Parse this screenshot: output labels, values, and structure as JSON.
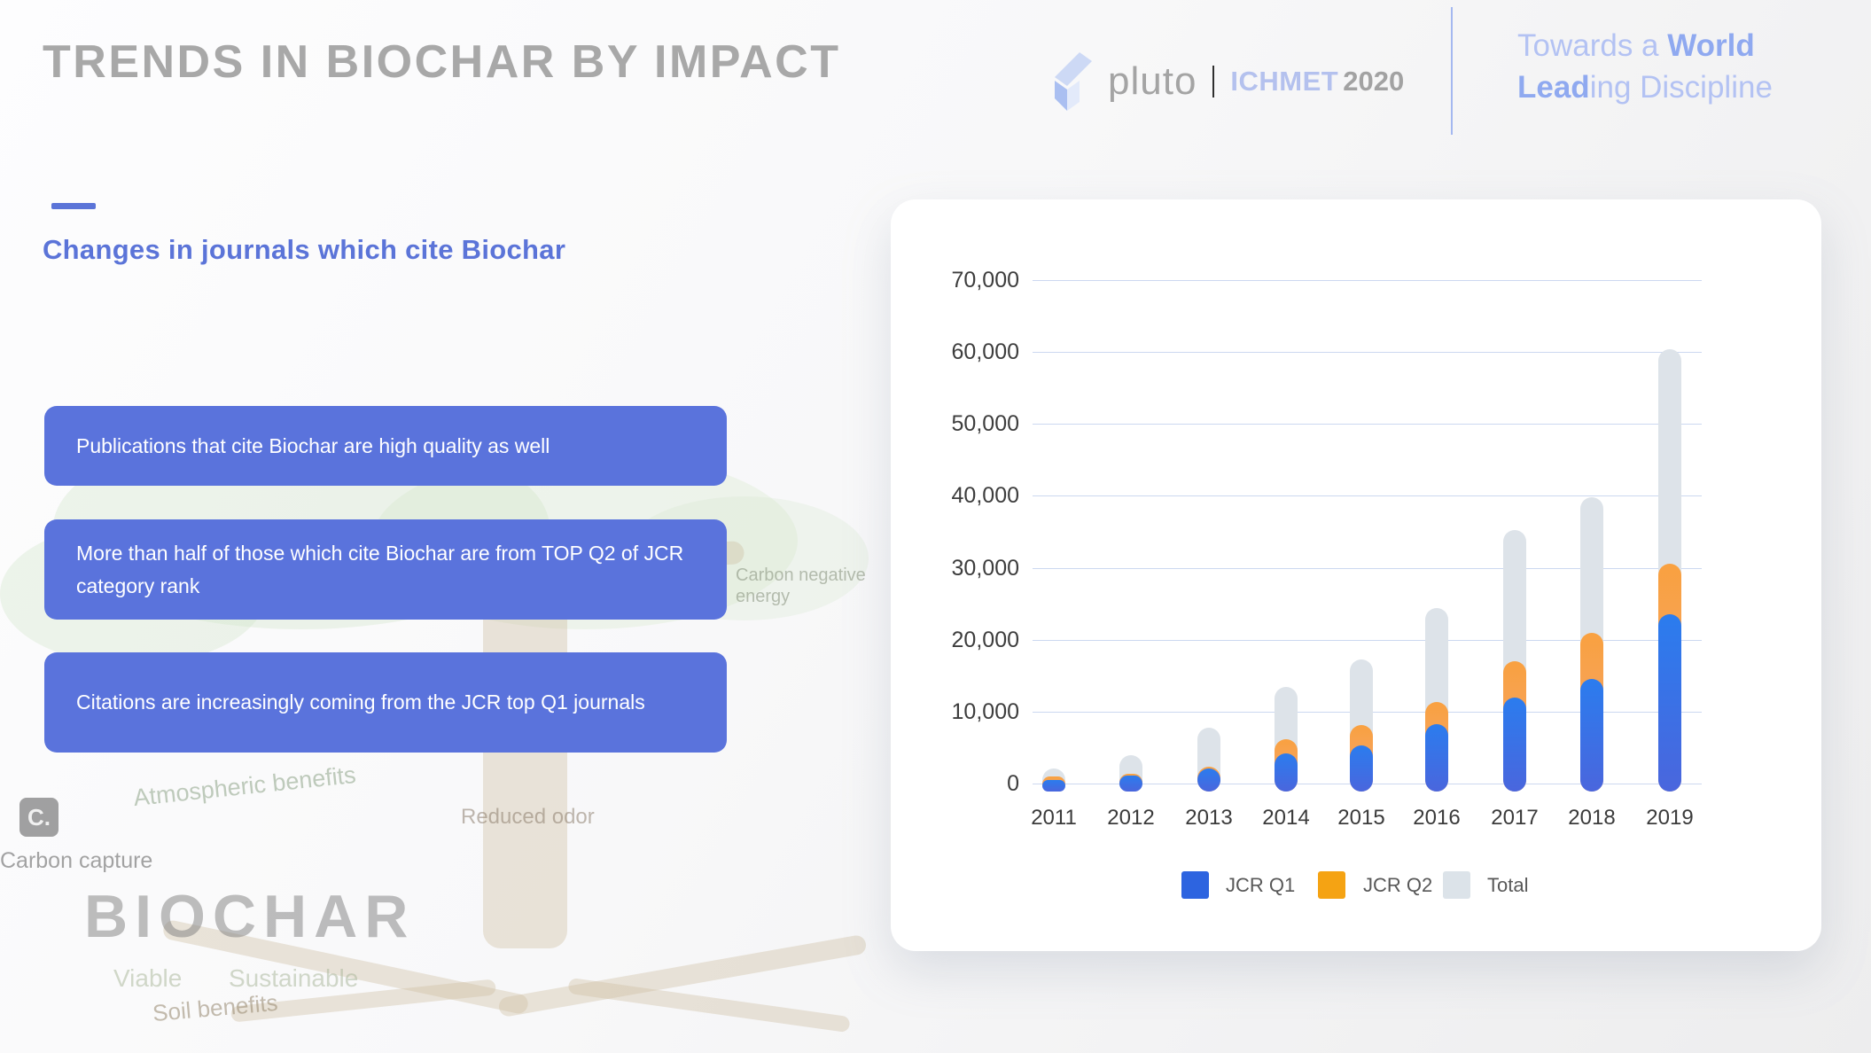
{
  "header": {
    "title": "TRENDS IN BIOCHAR BY IMPACT",
    "brand": {
      "name": "pluto",
      "event": "ICHMET",
      "year": "2020"
    },
    "motto": {
      "line1_light": "Towards a ",
      "line1_bold": "World",
      "line2_bold": "Lead",
      "line2_light": "ing Discipline"
    }
  },
  "content": {
    "accent_color": "#5b74d8",
    "callout_bg": "#5a73dc",
    "heading": "Changes in journals which cite Biochar",
    "callouts": [
      "Publications that cite Biochar are high quality as well",
      "More than half of those which cite Biochar are from TOP Q2 of JCR category rank",
      "Citations are increasingly coming from the JCR top Q1 journals"
    ]
  },
  "watermark": {
    "big_text": "BIOCHAR",
    "labels": {
      "atmospheric": "Atmospheric benefits",
      "reduced_odor": "Reduced odor",
      "carbon_icon": "C.",
      "carbon_capture": "Carbon capture",
      "viable": "Viable",
      "sustainable": "Sustainable",
      "soil": "Soil benefits",
      "carbon_negative_line1": "Carbon negative",
      "carbon_negative_line2": "energy"
    }
  },
  "chart_data": {
    "type": "bar",
    "style": "overlaid rounded bars drawn from zero (not stacked); Total behind, JCR Q2 middle, JCR Q1 front",
    "title": "",
    "xlabel": "",
    "ylabel": "",
    "categories": [
      "2011",
      "2012",
      "2013",
      "2014",
      "2015",
      "2016",
      "2017",
      "2018",
      "2019"
    ],
    "series": [
      {
        "name": "Total",
        "gradient": [
          "#dde3e9",
          "#dde3e9"
        ],
        "values": [
          2100,
          3900,
          7800,
          13400,
          17200,
          24400,
          35200,
          39800,
          60400
        ]
      },
      {
        "name": "JCR Q2",
        "gradient": [
          "#f9a140",
          "#f3a477"
        ],
        "values": [
          1000,
          1400,
          2400,
          6200,
          8100,
          11300,
          17000,
          21000,
          30600
        ]
      },
      {
        "name": "JCR Q1",
        "gradient": [
          "#2b7cee",
          "#4a66dd"
        ],
        "values": [
          500,
          1100,
          2100,
          4200,
          5300,
          8200,
          11900,
          14600,
          23600
        ]
      }
    ],
    "ylim": [
      0,
      70000
    ],
    "ytick_step": 10000,
    "ytick_labels": [
      "0",
      "10,000",
      "20,000",
      "30,000",
      "40,000",
      "50,000",
      "60,000",
      "70,000"
    ],
    "grid": true,
    "legend": {
      "position": "bottom",
      "entries": [
        {
          "label": "JCR Q1",
          "color": "#2d64e0"
        },
        {
          "label": "JCR Q2",
          "color": "#f5a313"
        },
        {
          "label": "Total",
          "color": "#dce3e9"
        }
      ]
    }
  }
}
